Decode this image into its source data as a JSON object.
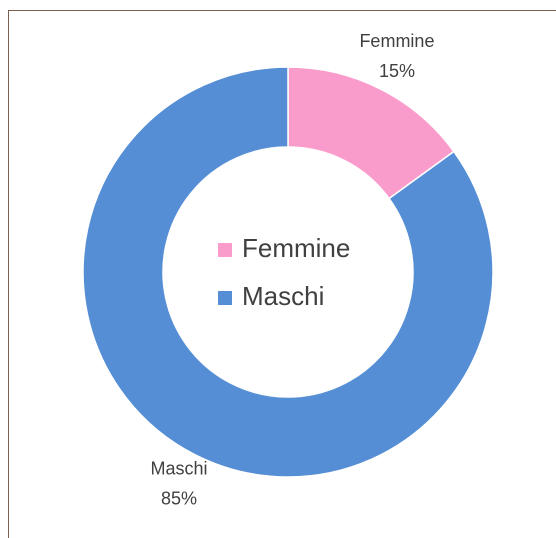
{
  "chart_data": {
    "type": "pie",
    "categories": [
      "Femmine",
      "Maschi"
    ],
    "values": [
      15,
      85
    ],
    "value_labels": [
      "15%",
      "85%"
    ],
    "colors": [
      "#fa9ccb",
      "#558ed5"
    ],
    "donut": true,
    "legend": "center"
  }
}
